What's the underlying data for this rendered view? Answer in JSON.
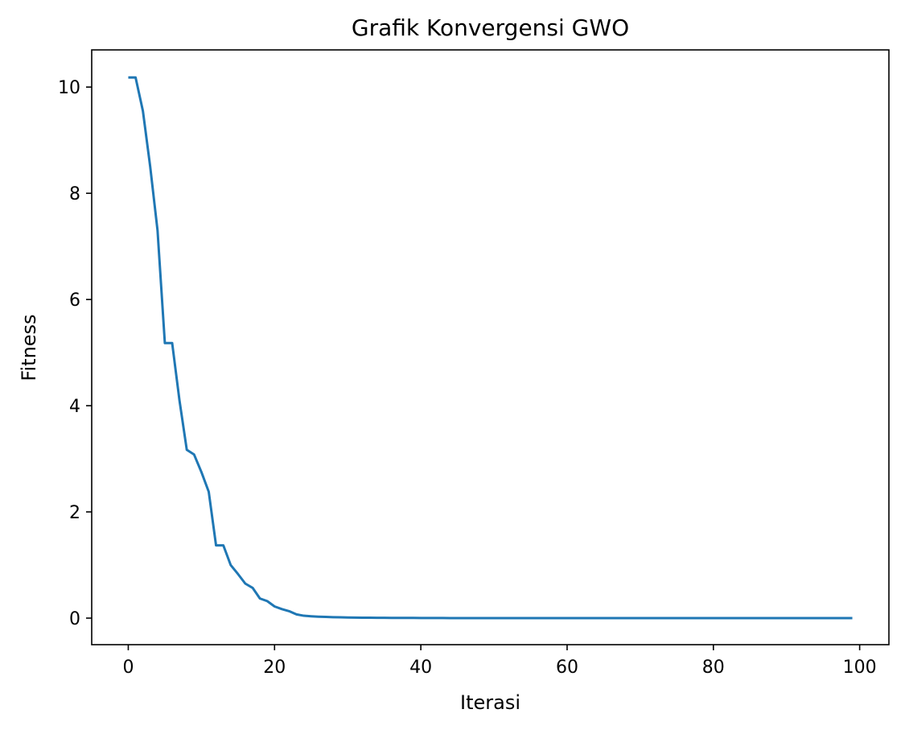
{
  "chart_data": {
    "type": "line",
    "title": "Grafik Konvergensi GWO",
    "xlabel": "Iterasi",
    "ylabel": "Fitness",
    "xlim": [
      -5,
      104
    ],
    "ylim": [
      -0.5,
      10.7
    ],
    "xticks": [
      0,
      20,
      40,
      60,
      80,
      100
    ],
    "yticks": [
      0,
      2,
      4,
      6,
      8,
      10
    ],
    "grid": false,
    "legend": "none",
    "series": [
      {
        "color": "#1f77b4",
        "x": [
          0,
          1,
          2,
          3,
          4,
          5,
          6,
          7,
          8,
          9,
          10,
          11,
          12,
          13,
          14,
          15,
          16,
          17,
          18,
          19,
          20,
          21,
          22,
          23,
          24,
          25,
          26,
          27,
          28,
          29,
          30,
          31,
          32,
          33,
          34,
          35,
          36,
          37,
          38,
          39,
          40,
          41,
          42,
          43,
          44,
          45,
          46,
          47,
          48,
          49,
          50,
          51,
          52,
          53,
          54,
          55,
          56,
          57,
          58,
          59,
          60,
          61,
          62,
          63,
          64,
          65,
          66,
          67,
          68,
          69,
          70,
          71,
          72,
          73,
          74,
          75,
          76,
          77,
          78,
          79,
          80,
          81,
          82,
          83,
          84,
          85,
          86,
          87,
          88,
          89,
          90,
          91,
          92,
          93,
          94,
          95,
          96,
          97,
          98,
          99
        ],
        "y": [
          10.18,
          10.18,
          9.55,
          8.5,
          7.3,
          5.18,
          5.18,
          4.1,
          3.17,
          3.08,
          2.75,
          2.38,
          1.37,
          1.37,
          1.0,
          0.83,
          0.65,
          0.57,
          0.37,
          0.32,
          0.22,
          0.17,
          0.13,
          0.07,
          0.045,
          0.035,
          0.027,
          0.022,
          0.018,
          0.015,
          0.012,
          0.01,
          0.008,
          0.007,
          0.006,
          0.005,
          0.004,
          0.004,
          0.003,
          0.003,
          0.002,
          0.002,
          0.002,
          0.002,
          0.001,
          0.001,
          0.001,
          0.001,
          0.001,
          0.001,
          0.001,
          0.001,
          0.001,
          0.001,
          0.001,
          0.001,
          0.001,
          0.001,
          0.001,
          0.001,
          0.001,
          0.001,
          0.001,
          0.001,
          0.001,
          0.001,
          0.001,
          0.001,
          0.001,
          0.001,
          0.001,
          0.001,
          0.001,
          0.001,
          0.001,
          0.001,
          0.001,
          0.001,
          0.001,
          0.001,
          0.001,
          0.001,
          0.001,
          0.001,
          0.001,
          0.001,
          0.001,
          0.001,
          0.001,
          0.001,
          0.001,
          0.001,
          0.001,
          0.001,
          0.001,
          0.001,
          0.001,
          0.001,
          0.001,
          0.001
        ]
      }
    ]
  }
}
